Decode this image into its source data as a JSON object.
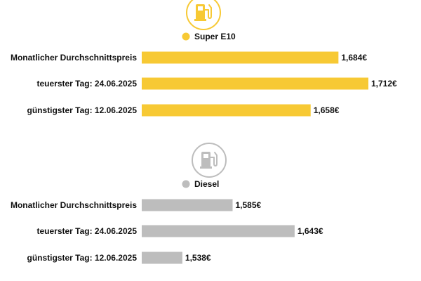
{
  "chart_data": [
    {
      "type": "bar",
      "orientation": "horizontal",
      "series_name": "Super E10",
      "color": "#f7c934",
      "icon": "fuel-pump-icon",
      "categories": [
        "Monatlicher Durchschnittspreis",
        "teuerster Tag: 24.06.2025",
        "günstigster Tag: 12.06.2025"
      ],
      "values": [
        1.684,
        1.712,
        1.658
      ],
      "value_labels": [
        "1,684€",
        "1,712€",
        "1,658€"
      ],
      "xlim": [
        1.5,
        1.72
      ]
    },
    {
      "type": "bar",
      "orientation": "horizontal",
      "series_name": "Diesel",
      "color": "#bdbdbd",
      "icon": "fuel-pump-icon",
      "categories": [
        "Monatlicher Durchschnittspreis",
        "teuerster Tag: 24.06.2025",
        "günstigster Tag: 12.06.2025"
      ],
      "values": [
        1.585,
        1.643,
        1.538
      ],
      "value_labels": [
        "1,585€",
        "1,643€",
        "1,538€"
      ],
      "xlim": [
        1.5,
        1.72
      ]
    }
  ]
}
